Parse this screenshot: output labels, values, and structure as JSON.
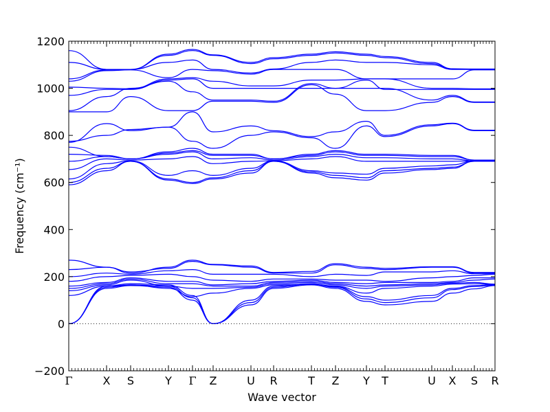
{
  "chart_data": {
    "type": "line",
    "title": "",
    "xlabel": "Wave vector",
    "ylabel": "Frequency (cm⁻¹)",
    "ylim": [
      -200,
      1200
    ],
    "yticks": [
      -200,
      0,
      200,
      400,
      600,
      800,
      1000,
      1200
    ],
    "grid": false,
    "legend": "none",
    "zero_reference_line": 0,
    "k_path": [
      "Γ",
      "X",
      "S",
      "Y",
      "Γ",
      "Z",
      "U",
      "R",
      "T",
      "Z",
      "Y",
      "T",
      "U",
      "X",
      "S",
      "R"
    ],
    "k_positions": [
      0,
      0.55,
      0.9,
      1.45,
      1.8,
      2.1,
      2.65,
      2.98,
      3.53,
      3.88,
      4.33,
      4.6,
      5.28,
      5.58,
      5.9,
      6.2
    ],
    "colors": {
      "bands": "#0000ff",
      "axes": "#000000"
    },
    "series": [
      {
        "values": [
          0,
          150,
          162,
          155,
          100,
          0,
          80,
          150,
          165,
          150,
          95,
          80,
          95,
          130,
          148,
          162
        ]
      },
      {
        "values": [
          0,
          155,
          165,
          160,
          110,
          0,
          90,
          155,
          168,
          155,
          105,
          90,
          110,
          145,
          158,
          164
        ]
      },
      {
        "values": [
          0,
          160,
          170,
          165,
          120,
          0,
          100,
          160,
          170,
          158,
          115,
          100,
          120,
          150,
          162,
          166
        ]
      },
      {
        "values": [
          120,
          160,
          165,
          150,
          115,
          130,
          150,
          165,
          168,
          160,
          130,
          150,
          160,
          168,
          170,
          166
        ]
      },
      {
        "values": [
          140,
          165,
          185,
          160,
          150,
          150,
          155,
          170,
          175,
          165,
          150,
          160,
          165,
          172,
          175,
          168
        ]
      },
      {
        "values": [
          150,
          170,
          190,
          170,
          170,
          160,
          160,
          175,
          180,
          170,
          160,
          165,
          170,
          175,
          185,
          190
        ]
      },
      {
        "values": [
          160,
          175,
          195,
          180,
          180,
          165,
          170,
          180,
          185,
          175,
          170,
          175,
          175,
          180,
          195,
          195
        ]
      },
      {
        "values": [
          180,
          200,
          205,
          210,
          200,
          185,
          180,
          190,
          190,
          185,
          185,
          180,
          195,
          200,
          205,
          210
        ]
      },
      {
        "values": [
          200,
          215,
          210,
          225,
          230,
          210,
          210,
          210,
          200,
          210,
          205,
          220,
          220,
          225,
          212,
          212
        ]
      },
      {
        "values": [
          230,
          240,
          220,
          235,
          265,
          250,
          240,
          215,
          215,
          250,
          235,
          230,
          240,
          240,
          215,
          215
        ]
      },
      {
        "values": [
          270,
          240,
          215,
          240,
          270,
          252,
          245,
          218,
          222,
          255,
          240,
          235,
          242,
          242,
          218,
          218
        ]
      },
      {
        "values": [
          590,
          650,
          690,
          610,
          595,
          615,
          640,
          690,
          640,
          620,
          610,
          640,
          655,
          660,
          690,
          690
        ]
      },
      {
        "values": [
          600,
          660,
          690,
          615,
          600,
          620,
          650,
          690,
          645,
          630,
          620,
          650,
          660,
          665,
          690,
          690
        ]
      },
      {
        "values": [
          615,
          680,
          692,
          630,
          650,
          630,
          660,
          692,
          650,
          640,
          635,
          660,
          670,
          675,
          692,
          692
        ]
      },
      {
        "values": [
          655,
          700,
          695,
          700,
          710,
          680,
          690,
          692,
          700,
          710,
          690,
          690,
          690,
          690,
          692,
          692
        ]
      },
      {
        "values": [
          690,
          710,
          700,
          720,
          730,
          700,
          705,
          695,
          710,
          720,
          705,
          705,
          700,
          700,
          692,
          692
        ]
      },
      {
        "values": [
          720,
          715,
          700,
          725,
          735,
          715,
          715,
          700,
          715,
          730,
          715,
          715,
          710,
          710,
          695,
          695
        ]
      },
      {
        "values": [
          750,
          710,
          700,
          730,
          745,
          720,
          720,
          700,
          720,
          735,
          720,
          720,
          715,
          715,
          695,
          695
        ]
      },
      {
        "values": [
          770,
          850,
          820,
          835,
          775,
          745,
          800,
          815,
          790,
          745,
          840,
          795,
          840,
          850,
          820,
          820
        ]
      },
      {
        "values": [
          775,
          800,
          825,
          835,
          900,
          815,
          840,
          820,
          795,
          815,
          860,
          800,
          845,
          852,
          822,
          822
        ]
      },
      {
        "values": [
          900,
          900,
          965,
          905,
          905,
          945,
          945,
          940,
          1015,
          975,
          905,
          905,
          940,
          965,
          940,
          940
        ]
      },
      {
        "values": [
          905,
          965,
          1000,
          1030,
          985,
          950,
          950,
          945,
          1020,
          1000,
          1000,
          1000,
          950,
          970,
          942,
          942
        ]
      },
      {
        "values": [
          970,
          995,
          995,
          1035,
          1040,
          1000,
          1000,
          1000,
          1000,
          1000,
          1035,
          995,
          995,
          995,
          995,
          995
        ]
      },
      {
        "values": [
          1005,
          1000,
          998,
          1040,
          1045,
          1030,
          1010,
          1010,
          1035,
          1035,
          1040,
          1040,
          1000,
          1000,
          998,
          998
        ]
      },
      {
        "values": [
          1030,
          1075,
          1078,
          1045,
          1080,
          1075,
          1060,
          1080,
          1080,
          1080,
          1040,
          1040,
          1040,
          1040,
          1078,
          1078
        ]
      },
      {
        "values": [
          1040,
          1078,
          1080,
          1110,
          1120,
          1080,
          1065,
          1082,
          1110,
          1120,
          1110,
          1110,
          1100,
          1080,
          1080,
          1080
        ]
      },
      {
        "values": [
          1110,
          1080,
          1080,
          1140,
          1160,
          1140,
          1105,
          1125,
          1140,
          1150,
          1140,
          1130,
          1105,
          1082,
          1080,
          1080
        ]
      },
      {
        "values": [
          1160,
          1080,
          1080,
          1145,
          1165,
          1142,
          1110,
          1130,
          1145,
          1155,
          1145,
          1135,
          1110,
          1083,
          1082,
          1082
        ]
      }
    ]
  }
}
